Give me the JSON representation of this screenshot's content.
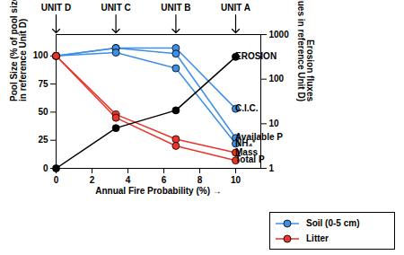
{
  "chart_data": {
    "type": "line",
    "x_label": "Annual Fire Probability (%)",
    "y_label": "Pool Size (% of pool size\nin reference Unit D)",
    "y2_label": "Erosion fluxes\n(x times above values in reference Unit D)",
    "x": [
      0,
      3.33,
      6.67,
      10
    ],
    "xlim": [
      0,
      11.4
    ],
    "xticks": [
      0,
      2,
      4,
      6,
      8,
      10
    ],
    "ylim": [
      0,
      119
    ],
    "yticks": [
      0,
      25,
      50,
      75,
      100
    ],
    "y2lim": [
      1,
      1000
    ],
    "y2ticks": [
      1,
      10,
      100,
      1000
    ],
    "log": "y2",
    "marker": "circle",
    "legend": "bottom-right",
    "units": [
      {
        "label": "UNIT D",
        "x": 0
      },
      {
        "label": "UNIT C",
        "x": 3.33
      },
      {
        "label": "UNIT B",
        "x": 6.67
      },
      {
        "label": "UNIT A",
        "x": 10
      }
    ],
    "groups": [
      {
        "name": "Soil (0-5 cm)",
        "color": "#3d8fe8"
      },
      {
        "name": "Litter",
        "color": "#e8352a"
      }
    ],
    "series": [
      {
        "name": "C.I.C.",
        "group": "Soil (0-5 cm)",
        "color": "#3d8fe8",
        "values": [
          100,
          107,
          107,
          53
        ]
      },
      {
        "name": "Available P",
        "group": "Soil (0-5 cm)",
        "color": "#3d8fe8",
        "values": [
          100,
          107,
          102,
          27
        ]
      },
      {
        "name": "NH₄⁺",
        "group": "Soil (0-5 cm)",
        "color": "#3d8fe8",
        "values": [
          100,
          103,
          89,
          22
        ]
      },
      {
        "name": "Mass",
        "group": "Litter",
        "color": "#e8352a",
        "values": [
          100,
          48,
          26,
          14
        ]
      },
      {
        "name": "Total P",
        "group": "Litter",
        "color": "#e8352a",
        "values": [
          100,
          45,
          20,
          7
        ]
      },
      {
        "name": "EROSION",
        "axis": "y2",
        "color": "#000000",
        "values": [
          1,
          8,
          20,
          316
        ]
      }
    ]
  }
}
